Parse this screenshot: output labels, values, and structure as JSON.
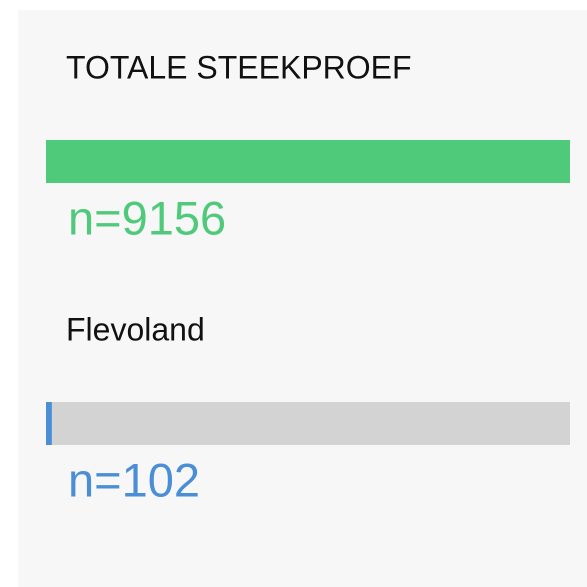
{
  "panels": [
    {
      "title": "TOTALE STEEKPROEF",
      "n": 9156,
      "n_label": "n=9156",
      "color": "#4fca7b"
    },
    {
      "title": "Flevoland",
      "n": 102,
      "n_label": "n=102",
      "color": "#4a8fd6"
    }
  ]
}
